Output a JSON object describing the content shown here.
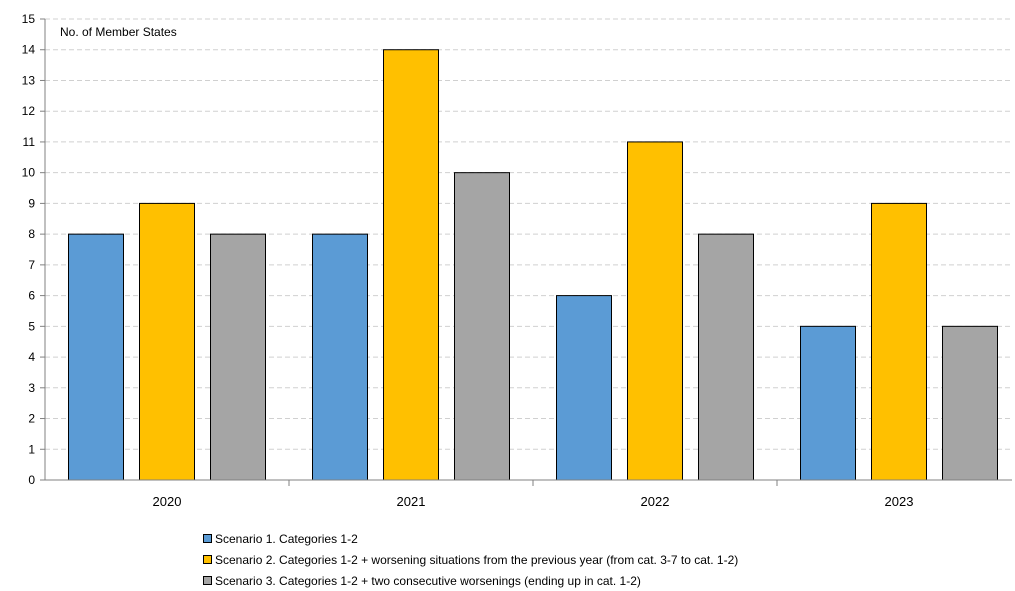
{
  "chart_data": {
    "type": "bar",
    "title": "",
    "ylabel": "No. of Member States",
    "xlabel": "",
    "categories": [
      "2020",
      "2021",
      "2022",
      "2023"
    ],
    "ylim": [
      0,
      15
    ],
    "ytick_step": 1,
    "grid": true,
    "legend_position": "bottom",
    "series": [
      {
        "name": "Scenario 1. Categories 1-2",
        "color": "#5b9bd5",
        "values": [
          8,
          8,
          6,
          5
        ]
      },
      {
        "name": "Scenario 2. Categories 1-2 + worsening situations from the previous year (from cat. 3-7 to cat. 1-2)",
        "color": "#ffc000",
        "values": [
          9,
          14,
          11,
          9
        ]
      },
      {
        "name": "Scenario 3. Categories 1-2 + two consecutive worsenings (ending up in cat. 1-2)",
        "color": "#a5a5a5",
        "values": [
          8,
          10,
          8,
          5
        ]
      }
    ]
  }
}
